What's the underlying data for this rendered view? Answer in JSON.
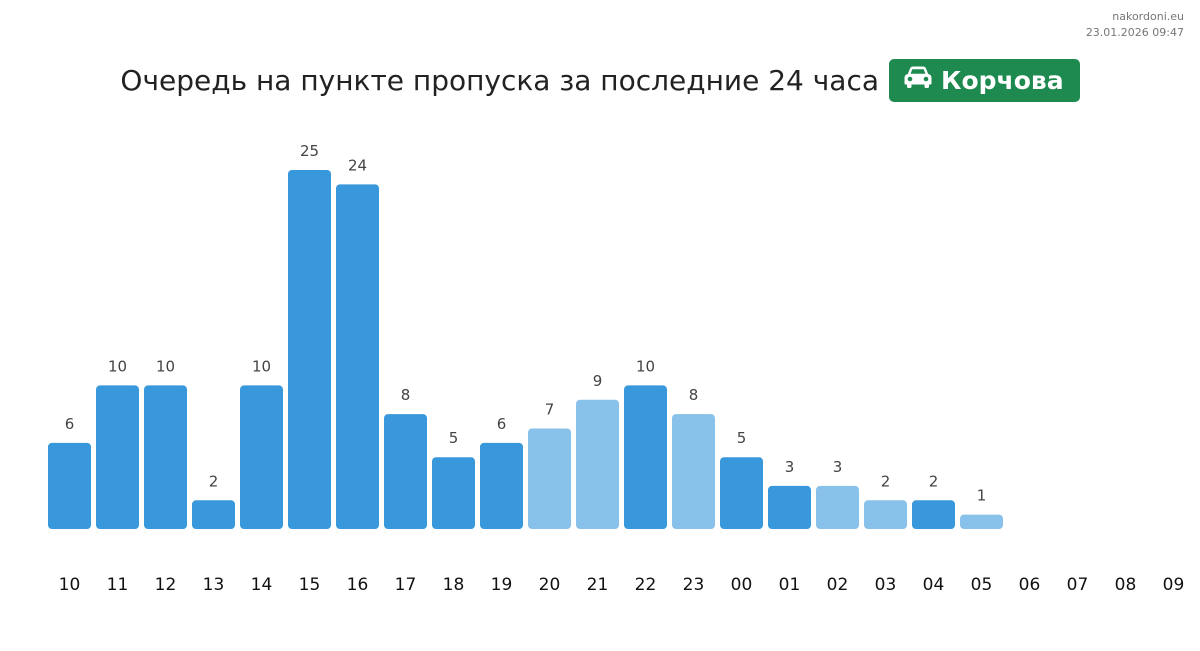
{
  "meta": {
    "site": "nakordoni.eu",
    "timestamp": "23.01.2026 09:47"
  },
  "header": {
    "title": "Очередь на пункте пропуска за последние 24 часа",
    "badge_label": "Корчова",
    "badge_icon": "car-icon",
    "badge_color": "#1e8a4f"
  },
  "colors": {
    "bar_dark": "#3898db",
    "bar_light": "#88c1ea"
  },
  "chart_data": {
    "type": "bar",
    "title": "",
    "xlabel": "",
    "ylabel": "",
    "ylim": [
      0,
      25
    ],
    "grid": false,
    "categories": [
      "10",
      "11",
      "12",
      "13",
      "14",
      "15",
      "16",
      "17",
      "18",
      "19",
      "20",
      "21",
      "22",
      "23",
      "00",
      "01",
      "02",
      "03",
      "04",
      "05",
      "06",
      "07",
      "08",
      "09"
    ],
    "values": [
      6,
      10,
      10,
      2,
      10,
      25,
      24,
      8,
      5,
      6,
      7,
      9,
      10,
      8,
      5,
      3,
      3,
      2,
      2,
      1,
      null,
      null,
      null,
      null
    ],
    "shade": [
      "dark",
      "dark",
      "dark",
      "dark",
      "dark",
      "dark",
      "dark",
      "dark",
      "dark",
      "dark",
      "light",
      "light",
      "dark",
      "light",
      "dark",
      "dark",
      "light",
      "light",
      "dark",
      "light",
      null,
      null,
      null,
      null
    ]
  }
}
